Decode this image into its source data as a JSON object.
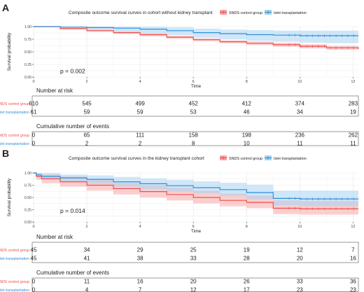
{
  "chart_data": [
    {
      "type": "line",
      "subtype": "kaplan-meier",
      "panel_label": "A",
      "title": "Composite outcome survival curves in cohort without kidney transplant",
      "xlabel": "Time",
      "ylabel": "Survival probability",
      "xlim": [
        0,
        12.2
      ],
      "ylim": [
        0,
        1.0
      ],
      "x_ticks": [
        0,
        2,
        4,
        6,
        8,
        10,
        12
      ],
      "y_ticks": [
        0.0,
        0.25,
        0.5,
        0.75,
        1.0
      ],
      "y_tick_labels": [
        "0.00",
        "0.25",
        "0.50",
        "0.75",
        "1.00"
      ],
      "grid": true,
      "legend_position": "top",
      "annotation": "p = 0.002",
      "series": [
        {
          "name": "SNDS control group",
          "color": "#f04e4e",
          "band_color": "#f7a7a7",
          "x": [
            0,
            1,
            2,
            3,
            4,
            5,
            6,
            7,
            8,
            9,
            10,
            11,
            12.2
          ],
          "y": [
            1.0,
            0.96,
            0.92,
            0.88,
            0.84,
            0.79,
            0.74,
            0.7,
            0.67,
            0.64,
            0.61,
            0.58,
            0.56
          ],
          "lower": [
            1.0,
            0.945,
            0.9,
            0.855,
            0.81,
            0.76,
            0.71,
            0.67,
            0.635,
            0.6,
            0.57,
            0.54,
            0.51
          ],
          "upper": [
            1.0,
            0.975,
            0.94,
            0.905,
            0.87,
            0.82,
            0.77,
            0.73,
            0.705,
            0.68,
            0.65,
            0.62,
            0.61
          ]
        },
        {
          "name": "Islet transplantation",
          "color": "#2f8fd8",
          "band_color": "#a8d4f2",
          "x": [
            0,
            1,
            2,
            3,
            4,
            5,
            6,
            7,
            8,
            9,
            10,
            11,
            12.2
          ],
          "y": [
            1.0,
            0.99,
            0.98,
            0.97,
            0.95,
            0.92,
            0.88,
            0.86,
            0.84,
            0.83,
            0.82,
            0.82,
            0.82
          ],
          "lower": [
            1.0,
            0.96,
            0.93,
            0.9,
            0.87,
            0.83,
            0.78,
            0.75,
            0.72,
            0.7,
            0.68,
            0.67,
            0.66
          ],
          "upper": [
            1.0,
            1.0,
            1.0,
            1.0,
            1.0,
            0.99,
            0.96,
            0.94,
            0.93,
            0.92,
            0.92,
            0.92,
            0.92
          ]
        }
      ],
      "risk_table": {
        "title": "Number at risk",
        "times": [
          0,
          2,
          4,
          6,
          8,
          10,
          12
        ],
        "rows": [
          {
            "name": "SNDS control group",
            "values": [
              610,
              545,
              499,
              452,
              412,
              374,
              283
            ]
          },
          {
            "name": "Islet transplantation",
            "values": [
              61,
              59,
              59,
              53,
              46,
              34,
              19
            ]
          }
        ]
      },
      "events_table": {
        "title": "Cumulative number of events",
        "times": [
          0,
          2,
          4,
          6,
          8,
          10,
          12
        ],
        "rows": [
          {
            "name": "SNDS control group",
            "values": [
              0,
              65,
              111,
              158,
              198,
              236,
              262
            ]
          },
          {
            "name": "Islet transplantation",
            "values": [
              0,
              2,
              2,
              8,
              10,
              11,
              11
            ]
          }
        ]
      }
    },
    {
      "type": "line",
      "subtype": "kaplan-meier",
      "panel_label": "B",
      "title": "Composite outcome survival curves in the kidney transplant cohort",
      "xlabel": "Time",
      "ylabel": "Survival probability",
      "xlim": [
        0,
        12.2
      ],
      "ylim": [
        0,
        1.0
      ],
      "x_ticks": [
        0,
        2,
        4,
        6,
        8,
        10,
        12
      ],
      "y_ticks": [
        0.0,
        0.25,
        0.5,
        0.75,
        1.0
      ],
      "y_tick_labels": [
        "0.00",
        "0.25",
        "0.50",
        "0.75",
        "1.00"
      ],
      "grid": true,
      "legend_position": "top",
      "annotation": "p = 0.014",
      "series": [
        {
          "name": "SNDS control group",
          "color": "#f04e4e",
          "band_color": "#f7a7a7",
          "x": [
            0,
            0.1,
            0.3,
            1,
            2,
            3,
            4,
            5,
            6,
            7,
            8,
            9,
            10,
            11,
            12.2
          ],
          "y": [
            1.0,
            0.93,
            0.88,
            0.82,
            0.75,
            0.68,
            0.62,
            0.56,
            0.5,
            0.44,
            0.4,
            0.28,
            0.27,
            0.27,
            0.27
          ],
          "lower": [
            1.0,
            0.86,
            0.79,
            0.72,
            0.64,
            0.56,
            0.5,
            0.44,
            0.38,
            0.32,
            0.28,
            0.16,
            0.15,
            0.15,
            0.15
          ],
          "upper": [
            1.0,
            1.0,
            0.97,
            0.93,
            0.87,
            0.8,
            0.75,
            0.7,
            0.64,
            0.58,
            0.54,
            0.44,
            0.43,
            0.43,
            0.43
          ]
        },
        {
          "name": "Islet transplantation",
          "color": "#2f8fd8",
          "band_color": "#a8d4f2",
          "x": [
            0,
            0.1,
            0.3,
            1,
            2,
            3,
            4,
            5,
            6,
            7,
            8,
            9,
            10,
            11,
            12.2
          ],
          "y": [
            1.0,
            0.96,
            0.93,
            0.9,
            0.87,
            0.82,
            0.78,
            0.74,
            0.7,
            0.66,
            0.6,
            0.48,
            0.47,
            0.47,
            0.47
          ],
          "lower": [
            1.0,
            0.91,
            0.87,
            0.83,
            0.78,
            0.72,
            0.67,
            0.62,
            0.58,
            0.53,
            0.46,
            0.34,
            0.32,
            0.32,
            0.32
          ],
          "upper": [
            1.0,
            1.0,
            1.0,
            0.97,
            0.95,
            0.92,
            0.89,
            0.86,
            0.83,
            0.8,
            0.76,
            0.64,
            0.64,
            0.64,
            0.64
          ]
        }
      ],
      "risk_table": {
        "title": "Number at risk",
        "times": [
          0,
          2,
          4,
          6,
          8,
          10,
          12
        ],
        "rows": [
          {
            "name": "SNDS control group",
            "values": [
              45,
              34,
              29,
              25,
              19,
              12,
              7
            ]
          },
          {
            "name": "Islet transplantation",
            "values": [
              45,
              41,
              38,
              33,
              28,
              20,
              16
            ]
          }
        ]
      },
      "events_table": {
        "title": "Cumulative number of events",
        "times": [
          0,
          2,
          4,
          6,
          8,
          10,
          12
        ],
        "rows": [
          {
            "name": "SNDS control group",
            "values": [
              0,
              11,
              16,
              20,
              26,
              33,
              36
            ]
          },
          {
            "name": "Islet transplantation",
            "values": [
              0,
              4,
              7,
              12,
              17,
              23,
              23
            ]
          }
        ]
      }
    }
  ]
}
